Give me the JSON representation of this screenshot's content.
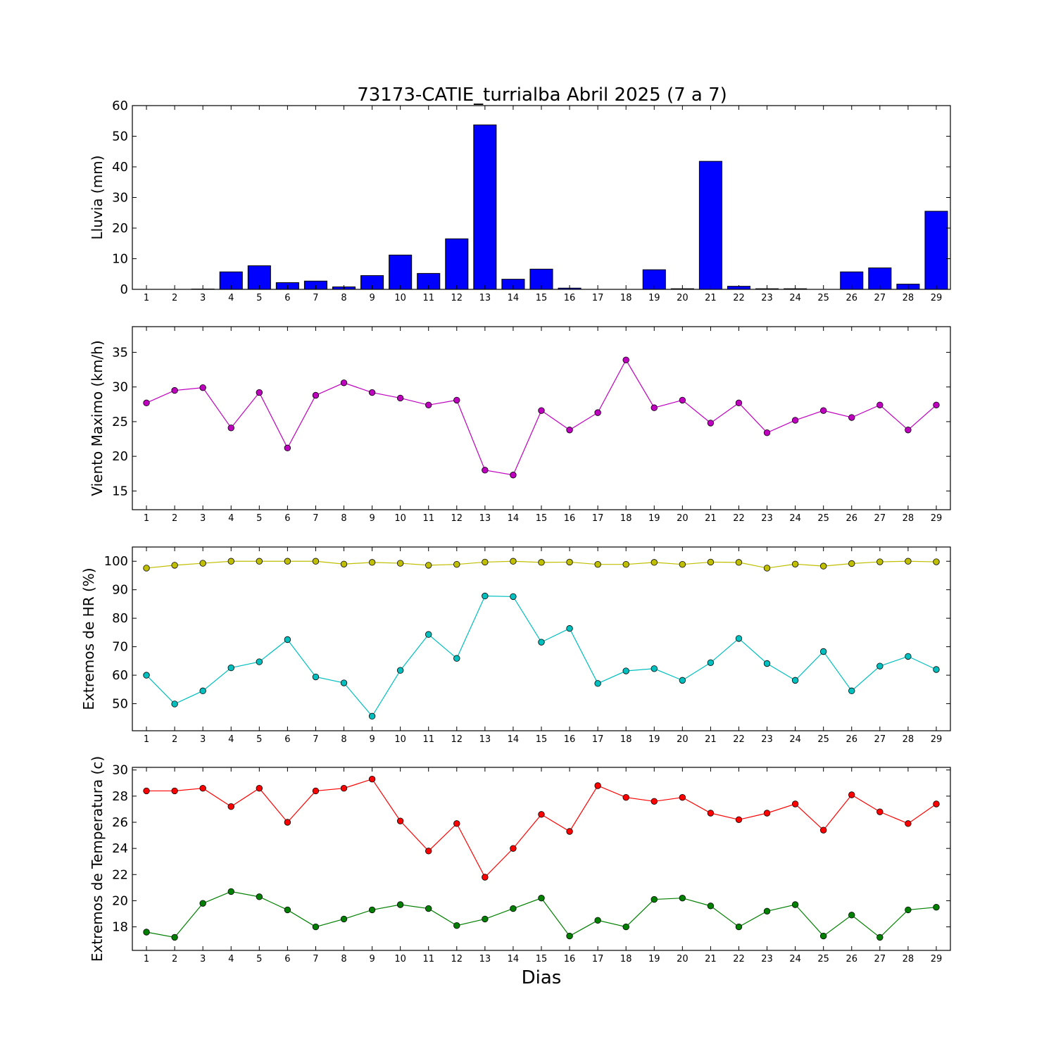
{
  "figure": {
    "title": "73173-CATIE_turrialba Abril 2025  (7 a 7)",
    "xlabel": "Dias"
  },
  "chart_data": [
    {
      "type": "bar",
      "ylabel": "Lluvia (mm)",
      "ylim": [
        0,
        60
      ],
      "yticks": [
        0,
        10,
        20,
        30,
        40,
        50,
        60
      ],
      "categories": [
        1,
        2,
        3,
        4,
        5,
        6,
        7,
        8,
        9,
        10,
        11,
        12,
        13,
        14,
        15,
        16,
        17,
        18,
        19,
        20,
        21,
        22,
        23,
        24,
        25,
        26,
        27,
        28,
        29
      ],
      "series": [
        {
          "color": "#0000ff",
          "values": [
            0.0,
            0.0,
            0.1,
            5.7,
            7.7,
            2.2,
            2.7,
            0.8,
            4.5,
            11.2,
            5.2,
            16.5,
            53.7,
            3.3,
            6.6,
            0.4,
            0.0,
            0.0,
            6.4,
            0.2,
            41.8,
            1.0,
            0.2,
            0.2,
            0.0,
            5.7,
            7.0,
            1.7,
            25.5
          ]
        }
      ]
    },
    {
      "type": "line",
      "ylabel": "Viento Maximo (km/h)",
      "ylim": [
        12.3,
        38.7
      ],
      "yticks": [
        15,
        20,
        25,
        30,
        35
      ],
      "x": [
        1,
        2,
        3,
        4,
        5,
        6,
        7,
        8,
        9,
        10,
        11,
        12,
        13,
        14,
        15,
        16,
        17,
        18,
        19,
        20,
        21,
        22,
        23,
        24,
        25,
        26,
        27,
        28,
        29
      ],
      "series": [
        {
          "color": "#bf00bf",
          "values": [
            27.7,
            29.5,
            29.9,
            24.1,
            29.2,
            21.2,
            28.8,
            30.6,
            29.2,
            28.4,
            27.4,
            28.1,
            18.0,
            17.3,
            26.6,
            23.8,
            26.3,
            33.9,
            27.0,
            28.1,
            24.8,
            27.7,
            23.4,
            25.2,
            26.6,
            25.6,
            27.4,
            23.8,
            27.4
          ]
        }
      ]
    },
    {
      "type": "line",
      "ylabel": "Extremos de HR (%)",
      "ylim": [
        40.5,
        105.0
      ],
      "yticks": [
        50,
        60,
        70,
        80,
        90,
        100
      ],
      "x": [
        1,
        2,
        3,
        4,
        5,
        6,
        7,
        8,
        9,
        10,
        11,
        12,
        13,
        14,
        15,
        16,
        17,
        18,
        19,
        20,
        21,
        22,
        23,
        24,
        25,
        26,
        27,
        28,
        29
      ],
      "series": [
        {
          "color": "#bfbf00",
          "values": [
            97.6,
            98.6,
            99.3,
            100.0,
            100.0,
            100.0,
            100.0,
            99.0,
            99.6,
            99.3,
            98.6,
            98.9,
            99.7,
            100.0,
            99.6,
            99.7,
            98.9,
            98.9,
            99.6,
            98.9,
            99.7,
            99.6,
            97.6,
            99.0,
            98.3,
            99.2,
            99.8,
            100.0,
            99.8
          ]
        },
        {
          "color": "#00bfbf",
          "values": [
            60.0,
            49.9,
            54.5,
            62.6,
            64.7,
            72.5,
            59.4,
            57.3,
            45.6,
            61.7,
            74.3,
            65.9,
            87.8,
            87.6,
            71.6,
            76.4,
            57.1,
            61.5,
            62.3,
            58.2,
            64.4,
            72.9,
            64.1,
            58.2,
            68.3,
            54.5,
            63.2,
            66.6,
            62.0
          ]
        }
      ]
    },
    {
      "type": "line",
      "ylabel": "Extremos de Temperatura (c)",
      "ylim": [
        16.2,
        30.2
      ],
      "yticks": [
        18,
        20,
        22,
        24,
        26,
        28,
        30
      ],
      "x": [
        1,
        2,
        3,
        4,
        5,
        6,
        7,
        8,
        9,
        10,
        11,
        12,
        13,
        14,
        15,
        16,
        17,
        18,
        19,
        20,
        21,
        22,
        23,
        24,
        25,
        26,
        27,
        28,
        29
      ],
      "series": [
        {
          "color": "#ff0000",
          "values": [
            28.4,
            28.4,
            28.6,
            27.2,
            28.6,
            26.0,
            28.4,
            28.6,
            29.3,
            26.1,
            23.8,
            25.9,
            21.8,
            24.0,
            26.6,
            25.3,
            28.8,
            27.9,
            27.6,
            27.9,
            26.7,
            26.2,
            26.7,
            27.4,
            25.4,
            28.1,
            26.8,
            25.9,
            27.4
          ]
        },
        {
          "color": "#008000",
          "values": [
            17.6,
            17.2,
            19.8,
            20.7,
            20.3,
            19.3,
            18.0,
            18.6,
            19.3,
            19.7,
            19.4,
            18.1,
            18.6,
            19.4,
            20.2,
            17.3,
            18.5,
            18.0,
            20.1,
            20.2,
            19.6,
            18.0,
            19.2,
            19.7,
            17.3,
            18.9,
            17.2,
            19.3,
            19.5
          ]
        }
      ]
    }
  ]
}
